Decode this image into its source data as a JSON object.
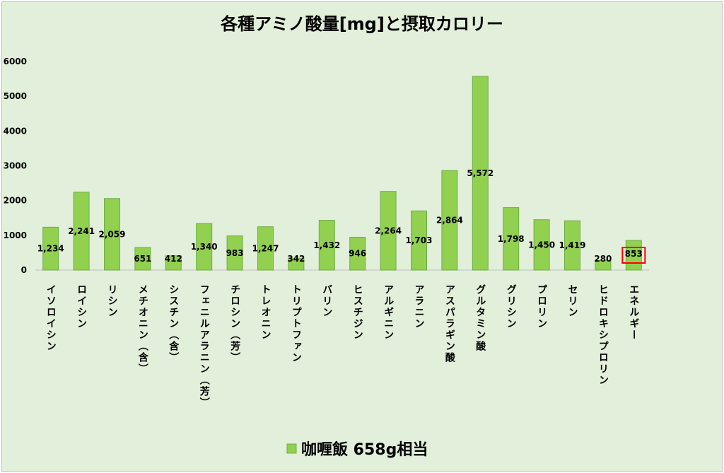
{
  "chart_data": {
    "type": "bar",
    "title": "各種アミノ酸量[mg]と摂取カロリー",
    "xlabel": "",
    "ylabel": "",
    "ylim": [
      0,
      6000
    ],
    "yticks": [
      0,
      1000,
      2000,
      3000,
      4000,
      5000,
      6000
    ],
    "grid": false,
    "legend_position": "bottom",
    "categories": [
      "イソロイシン",
      "ロイシン",
      "リシン",
      "メチオニン（含）",
      "シスチン（含）",
      "フェニルアラニン（芳）",
      "チロシン（芳）",
      "トレオニン",
      "トリプトファン",
      "バリン",
      "ヒスチジン",
      "アルギニン",
      "アラニン",
      "アスパラギン酸",
      "グルタミン酸",
      "グリシン",
      "プロリン",
      "セリン",
      "ヒドロキシプロリン",
      "エネルギー"
    ],
    "series": [
      {
        "name": "咖喱飯 658g相当",
        "color": "#92d050",
        "values": [
          1234,
          2241,
          2059,
          651,
          412,
          1340,
          983,
          1247,
          342,
          1432,
          946,
          2264,
          1703,
          2864,
          5572,
          1798,
          1450,
          1419,
          280,
          853
        ],
        "labels": [
          "1,234",
          "2,241",
          "2,059",
          "651",
          "412",
          "1,340",
          "983",
          "1,247",
          "342",
          "1,432",
          "946",
          "2,264",
          "1,703",
          "2,864",
          "5,572",
          "1,798",
          "1,450",
          "1,419",
          "280",
          "853"
        ]
      }
    ],
    "highlight_index": 19,
    "highlight_color": "#ff0000"
  }
}
